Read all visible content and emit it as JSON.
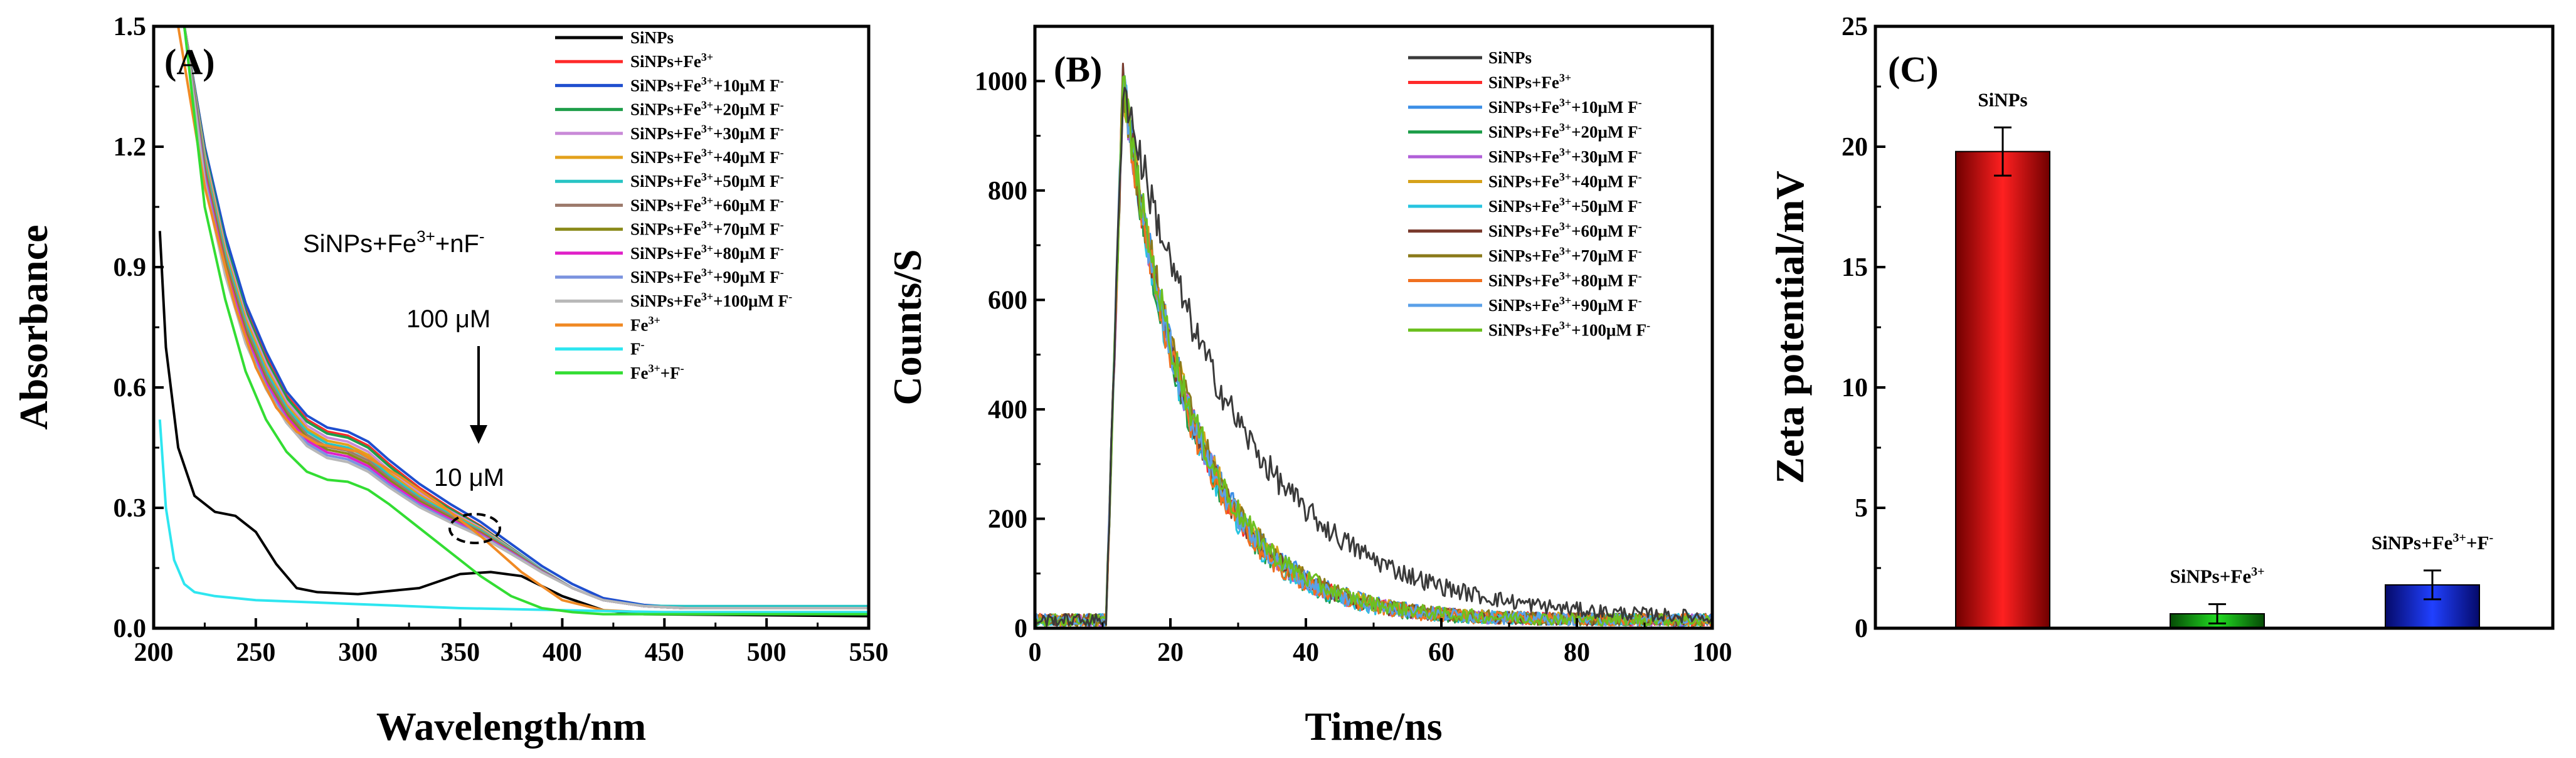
{
  "chart_data": [
    {
      "type": "line",
      "panel_label": "(A)",
      "xlabel": "Wavelength/nm",
      "ylabel": "Absorbance",
      "xlim": [
        200,
        550
      ],
      "ylim": [
        0,
        1.5
      ],
      "xticks": [
        "200",
        "250",
        "300",
        "350",
        "400",
        "450",
        "500",
        "550"
      ],
      "yticks": [
        "0.0",
        "0.3",
        "0.6",
        "0.9",
        "1.2",
        "1.5"
      ],
      "annotations": [
        "SiNPs+Fe3++nF-",
        "100 μM",
        "10 μM"
      ],
      "legend_position": "top-right",
      "series": [
        {
          "name": "SiNPs",
          "color": "#000000",
          "x": [
            203,
            206,
            212,
            220,
            230,
            240,
            250,
            260,
            270,
            280,
            300,
            330,
            350,
            365,
            380,
            400,
            420,
            440,
            550
          ],
          "y": [
            0.99,
            0.7,
            0.45,
            0.33,
            0.29,
            0.28,
            0.24,
            0.16,
            0.1,
            0.09,
            0.085,
            0.1,
            0.135,
            0.14,
            0.13,
            0.08,
            0.045,
            0.035,
            0.03
          ]
        },
        {
          "name": "SiNPs+Fe3+",
          "color": "#ff2a2a",
          "x": [
            215,
            225,
            235,
            245,
            255,
            265,
            275,
            285,
            295,
            305,
            315,
            330,
            345,
            360,
            375,
            390,
            405,
            420,
            440,
            460,
            550
          ],
          "y": [
            1.5,
            1.2,
            0.97,
            0.8,
            0.68,
            0.58,
            0.52,
            0.49,
            0.48,
            0.455,
            0.41,
            0.35,
            0.3,
            0.255,
            0.2,
            0.145,
            0.1,
            0.07,
            0.055,
            0.05,
            0.05
          ]
        },
        {
          "name": "SiNPs+Fe3++10μM F-",
          "color": "#1f4fcf",
          "x": [
            215,
            225,
            235,
            245,
            255,
            265,
            275,
            285,
            295,
            305,
            315,
            330,
            345,
            360,
            375,
            390,
            405,
            420,
            440,
            460,
            550
          ],
          "y": [
            1.5,
            1.2,
            0.98,
            0.81,
            0.69,
            0.59,
            0.53,
            0.5,
            0.49,
            0.465,
            0.42,
            0.36,
            0.31,
            0.265,
            0.21,
            0.155,
            0.11,
            0.075,
            0.058,
            0.052,
            0.05
          ]
        },
        {
          "name": "SiNPs+Fe3++20μM F-",
          "color": "#1e9e4a",
          "x": [
            215,
            225,
            235,
            245,
            255,
            265,
            275,
            285,
            295,
            305,
            315,
            330,
            345,
            360,
            375,
            390,
            405,
            420,
            440,
            460,
            550
          ],
          "y": [
            1.5,
            1.19,
            0.96,
            0.79,
            0.67,
            0.575,
            0.515,
            0.485,
            0.475,
            0.45,
            0.405,
            0.345,
            0.297,
            0.253,
            0.2,
            0.146,
            0.1,
            0.07,
            0.055,
            0.05,
            0.05
          ]
        },
        {
          "name": "SiNPs+Fe3++30μM F-",
          "color": "#c98ad8",
          "x": [
            215,
            225,
            235,
            245,
            255,
            265,
            275,
            285,
            295,
            305,
            315,
            330,
            345,
            360,
            375,
            390,
            405,
            420,
            440,
            460,
            550
          ],
          "y": [
            1.5,
            1.18,
            0.95,
            0.78,
            0.66,
            0.565,
            0.505,
            0.475,
            0.465,
            0.44,
            0.395,
            0.338,
            0.292,
            0.25,
            0.198,
            0.145,
            0.1,
            0.07,
            0.055,
            0.05,
            0.05
          ]
        },
        {
          "name": "SiNPs+Fe3++40μM F-",
          "color": "#e3a11b",
          "x": [
            215,
            225,
            235,
            245,
            255,
            265,
            275,
            285,
            295,
            305,
            315,
            330,
            345,
            360,
            375,
            390,
            405,
            420,
            440,
            460,
            550
          ],
          "y": [
            1.5,
            1.17,
            0.94,
            0.77,
            0.65,
            0.557,
            0.497,
            0.467,
            0.457,
            0.432,
            0.388,
            0.332,
            0.288,
            0.247,
            0.196,
            0.144,
            0.1,
            0.07,
            0.055,
            0.05,
            0.05
          ]
        },
        {
          "name": "SiNPs+Fe3++50μM F-",
          "color": "#27c4c4",
          "x": [
            215,
            225,
            235,
            245,
            255,
            265,
            275,
            285,
            295,
            305,
            315,
            330,
            345,
            360,
            375,
            390,
            405,
            420,
            440,
            460,
            550
          ],
          "y": [
            1.5,
            1.16,
            0.93,
            0.76,
            0.64,
            0.55,
            0.49,
            0.46,
            0.45,
            0.425,
            0.382,
            0.327,
            0.284,
            0.244,
            0.195,
            0.144,
            0.1,
            0.07,
            0.056,
            0.055,
            0.055
          ]
        },
        {
          "name": "SiNPs+Fe3++60μM F-",
          "color": "#9c7a6b",
          "x": [
            215,
            225,
            235,
            245,
            255,
            265,
            275,
            285,
            295,
            305,
            315,
            330,
            345,
            360,
            375,
            390,
            405,
            420,
            440,
            460,
            550
          ],
          "y": [
            1.5,
            1.15,
            0.92,
            0.75,
            0.63,
            0.542,
            0.482,
            0.452,
            0.442,
            0.418,
            0.376,
            0.322,
            0.28,
            0.241,
            0.193,
            0.143,
            0.1,
            0.07,
            0.055,
            0.05,
            0.05
          ]
        },
        {
          "name": "SiNPs+Fe3++70μM F-",
          "color": "#8a8a1a",
          "x": [
            215,
            225,
            235,
            245,
            255,
            265,
            275,
            285,
            295,
            305,
            315,
            330,
            345,
            360,
            375,
            390,
            405,
            420,
            440,
            460,
            550
          ],
          "y": [
            1.5,
            1.14,
            0.91,
            0.74,
            0.62,
            0.535,
            0.475,
            0.445,
            0.435,
            0.411,
            0.37,
            0.317,
            0.276,
            0.238,
            0.191,
            0.142,
            0.1,
            0.07,
            0.055,
            0.05,
            0.05
          ]
        },
        {
          "name": "SiNPs+Fe3++80μM F-",
          "color": "#e020c8",
          "x": [
            215,
            225,
            235,
            245,
            255,
            265,
            275,
            285,
            295,
            305,
            315,
            330,
            345,
            360,
            375,
            390,
            405,
            420,
            440,
            460,
            550
          ],
          "y": [
            1.5,
            1.13,
            0.9,
            0.73,
            0.612,
            0.527,
            0.468,
            0.438,
            0.428,
            0.404,
            0.364,
            0.312,
            0.272,
            0.235,
            0.189,
            0.141,
            0.1,
            0.07,
            0.055,
            0.05,
            0.05
          ]
        },
        {
          "name": "SiNPs+Fe3++90μM F-",
          "color": "#7b93df",
          "x": [
            215,
            225,
            235,
            245,
            255,
            265,
            275,
            285,
            295,
            305,
            315,
            330,
            345,
            360,
            375,
            390,
            405,
            420,
            440,
            460,
            550
          ],
          "y": [
            1.5,
            1.12,
            0.89,
            0.72,
            0.604,
            0.52,
            0.461,
            0.431,
            0.421,
            0.397,
            0.358,
            0.307,
            0.268,
            0.232,
            0.187,
            0.14,
            0.1,
            0.07,
            0.055,
            0.05,
            0.05
          ]
        },
        {
          "name": "SiNPs+Fe3++100μM F-",
          "color": "#b8b8b8",
          "x": [
            215,
            225,
            235,
            245,
            255,
            265,
            275,
            285,
            295,
            305,
            315,
            330,
            345,
            360,
            375,
            390,
            405,
            420,
            440,
            460,
            550
          ],
          "y": [
            1.5,
            1.11,
            0.88,
            0.71,
            0.596,
            0.512,
            0.454,
            0.424,
            0.414,
            0.39,
            0.352,
            0.302,
            0.264,
            0.229,
            0.185,
            0.139,
            0.1,
            0.07,
            0.055,
            0.05,
            0.05
          ]
        },
        {
          "name": "Fe3+",
          "color": "#f08a24",
          "x": [
            212,
            225,
            240,
            250,
            260,
            270,
            280,
            300,
            320,
            340,
            360,
            380,
            400,
            420,
            440,
            550
          ],
          "y": [
            1.5,
            1.1,
            0.8,
            0.65,
            0.55,
            0.49,
            0.46,
            0.44,
            0.38,
            0.31,
            0.23,
            0.14,
            0.07,
            0.045,
            0.04,
            0.04
          ]
        },
        {
          "name": "F-",
          "color": "#2ee6f0",
          "x": [
            203,
            206,
            210,
            215,
            220,
            230,
            250,
            300,
            350,
            400,
            450,
            550
          ],
          "y": [
            0.52,
            0.3,
            0.17,
            0.11,
            0.09,
            0.08,
            0.07,
            0.06,
            0.05,
            0.045,
            0.04,
            0.04
          ]
        },
        {
          "name": "Fe3++F-",
          "color": "#33dd33",
          "x": [
            215,
            225,
            235,
            245,
            255,
            265,
            275,
            285,
            295,
            305,
            315,
            330,
            345,
            360,
            375,
            390,
            405,
            420,
            440,
            550
          ],
          "y": [
            1.5,
            1.05,
            0.82,
            0.64,
            0.52,
            0.44,
            0.39,
            0.37,
            0.365,
            0.345,
            0.31,
            0.25,
            0.19,
            0.13,
            0.08,
            0.05,
            0.04,
            0.035,
            0.035,
            0.035
          ]
        }
      ]
    },
    {
      "type": "line",
      "panel_label": "(B)",
      "xlabel": "Time/ns",
      "ylabel": "Counts/S",
      "xlim": [
        0,
        100
      ],
      "ylim": [
        0,
        1100
      ],
      "xticks": [
        "0",
        "20",
        "40",
        "60",
        "80",
        "100"
      ],
      "yticks": [
        "0",
        "200",
        "400",
        "600",
        "800",
        "1000"
      ],
      "legend_position": "top-right",
      "decay": {
        "onset_ns": 10.5,
        "peak_ns": 13,
        "peak_counts": 1000,
        "baseline_counts": 15,
        "tau_ns_sinps": 17,
        "tau_ns_others": 10
      },
      "series": [
        {
          "name": "SiNPs",
          "color": "#3a3a3a"
        },
        {
          "name": "SiNPs+Fe3+",
          "color": "#ff2a2a"
        },
        {
          "name": "SiNPs+Fe3++10μM F-",
          "color": "#3a8ee6"
        },
        {
          "name": "SiNPs+Fe3++20μM F-",
          "color": "#1e9e4a"
        },
        {
          "name": "SiNPs+Fe3++30μM F-",
          "color": "#b05fd8"
        },
        {
          "name": "SiNPs+Fe3++40μM F-",
          "color": "#d6a21a"
        },
        {
          "name": "SiNPs+Fe3++50μM F-",
          "color": "#27c4e0"
        },
        {
          "name": "SiNPs+Fe3++60μM F-",
          "color": "#7a3b2e"
        },
        {
          "name": "SiNPs+Fe3++70μM F-",
          "color": "#8a7a1a"
        },
        {
          "name": "SiNPs+Fe3++80μM F-",
          "color": "#f07020"
        },
        {
          "name": "SiNPs+Fe3++90μM F-",
          "color": "#5aa0e8"
        },
        {
          "name": "SiNPs+Fe3++100μM F-",
          "color": "#6cc020"
        }
      ]
    },
    {
      "type": "bar",
      "panel_label": "(C)",
      "ylabel": "Zeta potential/mV",
      "ylim": [
        0,
        25
      ],
      "yticks": [
        "0",
        "5",
        "10",
        "15",
        "20",
        "25"
      ],
      "categories": [
        "SiNPs",
        "SiNPs+Fe3+",
        "SiNPs+Fe3++F-"
      ],
      "values": [
        19.8,
        0.6,
        1.8
      ],
      "errors": [
        1.0,
        0.4,
        0.6
      ],
      "colors": [
        "#e00000",
        "#11aa11",
        "#1020c0"
      ]
    }
  ]
}
